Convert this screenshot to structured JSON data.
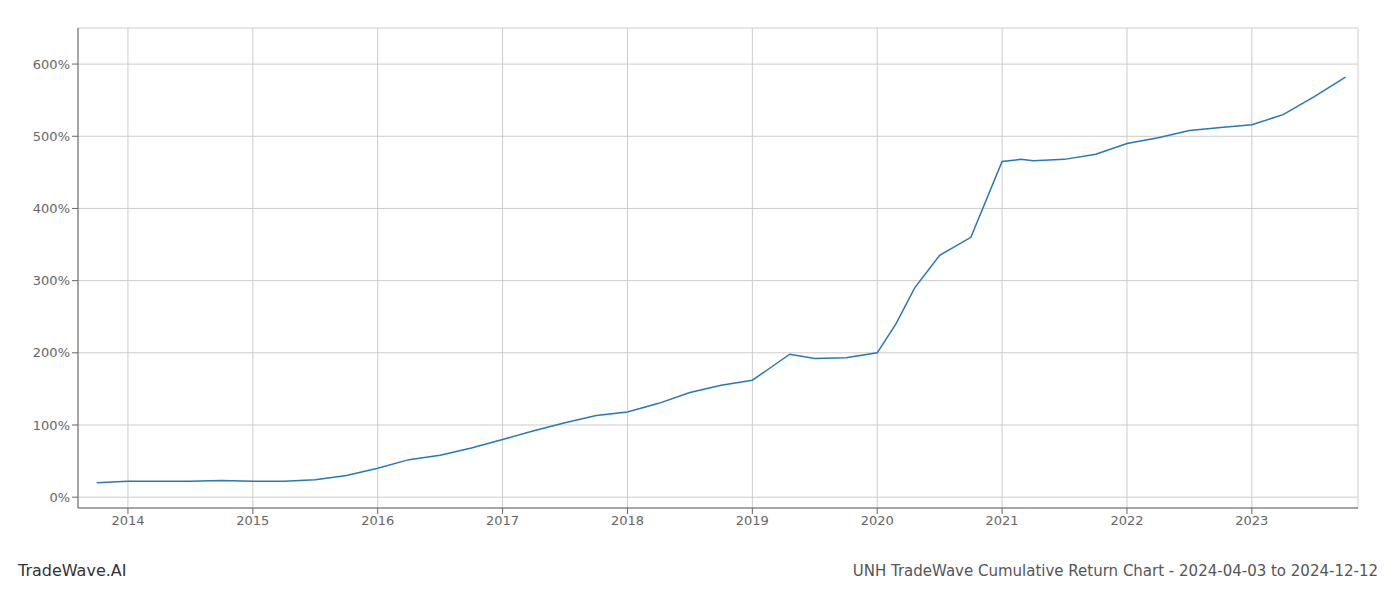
{
  "chart_data": {
    "type": "line",
    "title": "UNH TradeWave Cumulative Return Chart - 2024-04-03 to 2024-12-12",
    "annotations": [
      "TradeWave.AI"
    ],
    "color": "#2878b5",
    "grid": true,
    "x": [
      2013.75,
      2014.0,
      2014.25,
      2014.5,
      2014.75,
      2015.0,
      2015.25,
      2015.5,
      2015.75,
      2016.0,
      2016.25,
      2016.5,
      2016.75,
      2017.0,
      2017.25,
      2017.5,
      2017.75,
      2018.0,
      2018.25,
      2018.5,
      2018.75,
      2019.0,
      2019.15,
      2019.3,
      2019.5,
      2019.75,
      2020.0,
      2020.15,
      2020.3,
      2020.5,
      2020.75,
      2021.0,
      2021.15,
      2021.25,
      2021.5,
      2021.75,
      2022.0,
      2022.25,
      2022.5,
      2022.75,
      2023.0,
      2023.25,
      2023.5,
      2023.75
    ],
    "values": [
      20,
      22,
      22,
      22,
      23,
      22,
      22,
      24,
      30,
      40,
      52,
      58,
      68,
      80,
      92,
      103,
      113,
      118,
      130,
      145,
      155,
      162,
      180,
      198,
      192,
      193,
      200,
      240,
      290,
      335,
      360,
      465,
      468,
      466,
      468,
      475,
      490,
      498,
      508,
      512,
      516,
      530,
      555,
      582
    ],
    "xlim": [
      2013.6,
      2023.85
    ],
    "xticks": [
      2014,
      2015,
      2016,
      2017,
      2018,
      2019,
      2020,
      2021,
      2022,
      2023
    ],
    "ylim": [
      -15,
      650
    ],
    "yticks": [
      {
        "value": 0,
        "label": "0%"
      },
      {
        "value": 100,
        "label": "100%"
      },
      {
        "value": 200,
        "label": "200%"
      },
      {
        "value": 300,
        "label": "300%"
      },
      {
        "value": 400,
        "label": "400%"
      },
      {
        "value": 500,
        "label": "500%"
      },
      {
        "value": 600,
        "label": "600%"
      }
    ]
  }
}
